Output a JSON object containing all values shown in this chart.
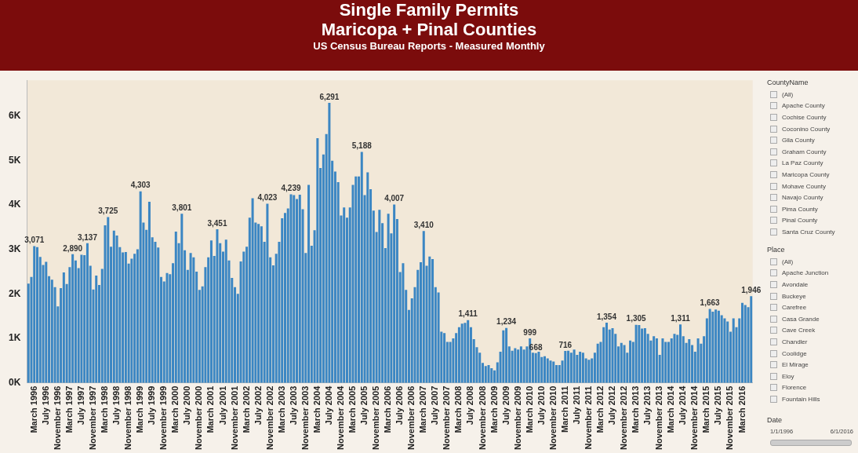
{
  "chart_data": [
    {
      "type": "bar",
      "title": "Single Family Permits\nMaricopa + Pinal Counties",
      "subtitle": "US Census Bureau Reports - Measured Monthly",
      "color": "#3b86c3",
      "categories": [
        null,
        null,
        "March 1996",
        null,
        null,
        null,
        "July 1996",
        null,
        null,
        null,
        "November 1996",
        null,
        null,
        null,
        "March 1997",
        null,
        null,
        null,
        "July 1997",
        null,
        null,
        null,
        "November 1997",
        null,
        null,
        null,
        "March 1998",
        null,
        null,
        null,
        "July 1998",
        null,
        null,
        null,
        "November 1998",
        null,
        null,
        null,
        "March 1999",
        null,
        null,
        null,
        "July 1999",
        null,
        null,
        null,
        "November 1999",
        null,
        null,
        null,
        "March 2000",
        null,
        null,
        null,
        "July 2000",
        null,
        null,
        null,
        "November 2000",
        null,
        null,
        null,
        "March 2001",
        null,
        null,
        null,
        "July 2001",
        null,
        null,
        null,
        "November 2001",
        null,
        null,
        null,
        "March 2002",
        null,
        null,
        null,
        "July 2002",
        null,
        null,
        null,
        "November 2002",
        null,
        null,
        null,
        "March 2003",
        null,
        null,
        null,
        "July 2003",
        null,
        null,
        null,
        "November 2003",
        null,
        null,
        null,
        "March 2004",
        null,
        null,
        null,
        "July 2004",
        null,
        null,
        null,
        "November 2004",
        null,
        null,
        null,
        "March 2005",
        null,
        null,
        null,
        "July 2005",
        null,
        null,
        null,
        "November 2005",
        null,
        null,
        null,
        "March 2006",
        null,
        null,
        null,
        "July 2006",
        null,
        null,
        null,
        "November 2006",
        null,
        null,
        null,
        "March 2007",
        null,
        null,
        null,
        "July 2007",
        null,
        null,
        null,
        "November 2007",
        null,
        null,
        null,
        "March 2008",
        null,
        null,
        null,
        "July 2008",
        null,
        null,
        null,
        "November 2008",
        null,
        null,
        null,
        "March 2009",
        null,
        null,
        null,
        "July 2009",
        null,
        null,
        null,
        "November 2009",
        null,
        null,
        null,
        "March 2010",
        null,
        null,
        null,
        "July 2010",
        null,
        null,
        null,
        "November 2010",
        null,
        null,
        null,
        "March 2011",
        null,
        null,
        null,
        "July 2011",
        null,
        null,
        null,
        "November 2011",
        null,
        null,
        null,
        "March 2012",
        null,
        null,
        null,
        "July 2012",
        null,
        null,
        null,
        "November 2012",
        null,
        null,
        null,
        "March 2013",
        null,
        null,
        null,
        "July 2013",
        null,
        null,
        null,
        "November 2013",
        null,
        null,
        null,
        "March 2014",
        null,
        null,
        null,
        "July 2014",
        null,
        null,
        null,
        "November 2014",
        null,
        null,
        null,
        "March 2015",
        null,
        null,
        null,
        "July 2015",
        null,
        null,
        null,
        "November 2015",
        null,
        null,
        null,
        "March 2016",
        null,
        null,
        null
      ],
      "values": [
        2230,
        2380,
        3071,
        3050,
        2830,
        2650,
        2720,
        2400,
        2320,
        2150,
        1720,
        2130,
        2480,
        2220,
        2600,
        2890,
        2750,
        2580,
        2880,
        2870,
        3137,
        2630,
        2100,
        2410,
        2200,
        2560,
        3540,
        3725,
        3060,
        3420,
        3310,
        3050,
        2930,
        2940,
        2680,
        2790,
        2900,
        3000,
        4303,
        3600,
        3440,
        4070,
        3270,
        3170,
        3040,
        2380,
        2280,
        2470,
        2440,
        2690,
        3400,
        3140,
        3801,
        2980,
        2540,
        2920,
        2820,
        2500,
        2090,
        2170,
        2600,
        2820,
        3200,
        2850,
        3451,
        3140,
        2950,
        3220,
        2750,
        2360,
        2150,
        2000,
        2730,
        2950,
        3060,
        3710,
        4150,
        3600,
        3570,
        3520,
        3170,
        4023,
        2820,
        2640,
        2900,
        3170,
        3700,
        3820,
        3920,
        4239,
        4220,
        4130,
        4230,
        3900,
        2920,
        4450,
        3080,
        3430,
        5500,
        4830,
        5130,
        5590,
        6291,
        4990,
        4750,
        4510,
        3760,
        3940,
        3710,
        3940,
        4450,
        4640,
        4640,
        5188,
        4220,
        4730,
        4350,
        3870,
        3390,
        3890,
        3590,
        3030,
        3800,
        3360,
        4007,
        3680,
        2490,
        2690,
        2090,
        1640,
        1900,
        2150,
        2540,
        2710,
        3410,
        2630,
        2840,
        2780,
        2150,
        2030,
        1150,
        1120,
        920,
        920,
        1000,
        1120,
        1250,
        1330,
        1350,
        1411,
        1250,
        980,
        800,
        680,
        450,
        380,
        400,
        330,
        280,
        460,
        700,
        1180,
        1234,
        820,
        720,
        780,
        750,
        820,
        750,
        820,
        999,
        680,
        668,
        700,
        580,
        600,
        550,
        500,
        480,
        400,
        400,
        500,
        716,
        720,
        680,
        750,
        630,
        700,
        680,
        550,
        520,
        550,
        680,
        880,
        920,
        1250,
        1354,
        1200,
        1230,
        1100,
        820,
        900,
        850,
        680,
        950,
        920,
        1305,
        1300,
        1220,
        1230,
        1100,
        950,
        1050,
        1000,
        630,
        1000,
        920,
        920,
        1000,
        1100,
        1080,
        1311,
        1050,
        900,
        980,
        850,
        700,
        1000,
        880,
        1050,
        1450,
        1663,
        1600,
        1650,
        1620,
        1520,
        1450,
        1380,
        1150,
        1450,
        1250,
        1450,
        1800,
        1750,
        1700,
        1946
      ],
      "value_labels": [
        null,
        null,
        "3,071",
        null,
        null,
        null,
        null,
        null,
        null,
        null,
        null,
        null,
        null,
        null,
        null,
        "2,890",
        null,
        null,
        null,
        null,
        "3,137",
        null,
        null,
        null,
        null,
        null,
        null,
        "3,725",
        null,
        null,
        null,
        null,
        null,
        null,
        null,
        null,
        null,
        null,
        "4,303",
        null,
        null,
        null,
        null,
        null,
        null,
        null,
        null,
        null,
        null,
        null,
        null,
        null,
        "3,801",
        null,
        null,
        null,
        null,
        null,
        null,
        null,
        null,
        null,
        null,
        null,
        "3,451",
        null,
        null,
        null,
        null,
        null,
        null,
        null,
        null,
        null,
        null,
        null,
        null,
        null,
        null,
        null,
        null,
        "4,023",
        null,
        null,
        null,
        null,
        null,
        null,
        null,
        "4,239",
        null,
        null,
        null,
        null,
        null,
        null,
        null,
        null,
        null,
        null,
        null,
        null,
        "6,291",
        null,
        null,
        null,
        null,
        null,
        null,
        null,
        null,
        null,
        null,
        "5,188",
        null,
        null,
        null,
        null,
        null,
        null,
        null,
        null,
        null,
        null,
        "4,007",
        null,
        null,
        null,
        null,
        null,
        null,
        null,
        null,
        null,
        "3,410",
        null,
        null,
        null,
        null,
        null,
        null,
        null,
        null,
        null,
        null,
        null,
        null,
        null,
        null,
        "1,411",
        null,
        null,
        null,
        null,
        null,
        null,
        null,
        null,
        null,
        null,
        null,
        null,
        "1,234",
        null,
        null,
        null,
        null,
        null,
        null,
        null,
        "999",
        null,
        "668",
        null,
        null,
        null,
        null,
        null,
        null,
        null,
        null,
        null,
        "716",
        null,
        null,
        null,
        null,
        null,
        null,
        null,
        null,
        null,
        null,
        null,
        null,
        null,
        "1,354",
        null,
        null,
        null,
        null,
        null,
        null,
        null,
        null,
        null,
        "1,305",
        null,
        null,
        null,
        null,
        null,
        null,
        null,
        null,
        null,
        null,
        null,
        null,
        null,
        null,
        "1,311",
        null,
        null,
        null,
        null,
        null,
        null,
        null,
        null,
        null,
        "1,663",
        null,
        null,
        null,
        null,
        null,
        null,
        null,
        null,
        null,
        null,
        null,
        null,
        null,
        "1,946"
      ],
      "ylim": [
        0,
        6800
      ],
      "yticks": [
        {
          "value": 0,
          "label": "0K"
        },
        {
          "value": 1000,
          "label": "1K"
        },
        {
          "value": 2000,
          "label": "2K"
        },
        {
          "value": 3000,
          "label": "3K"
        },
        {
          "value": 4000,
          "label": "4K"
        },
        {
          "value": 5000,
          "label": "5K"
        },
        {
          "value": 6000,
          "label": "6K"
        }
      ]
    },
    {
      "type": "other",
      "title": "CountyName",
      "annotations": [
        "(All)",
        "Apache County",
        "Cochise County",
        "Coconino County",
        "Gila County",
        "Graham County",
        "La Paz County",
        "Maricopa County",
        "Mohave County",
        "Navajo County",
        "Pima County",
        "Pinal County",
        "Santa Cruz County"
      ]
    },
    {
      "type": "other",
      "title": "Place",
      "annotations": [
        "(All)",
        "Apache Junction",
        "Avondale",
        "Buckeye",
        "Carefree",
        "Casa Grande",
        "Cave Creek",
        "Chandler",
        "Coolidge",
        "El Mirage",
        "Eloy",
        "Florence",
        "Fountain Hills"
      ]
    },
    {
      "type": "other",
      "title": "Date",
      "annotations": [
        "1/1/1996",
        "6/1/2016"
      ]
    }
  ]
}
